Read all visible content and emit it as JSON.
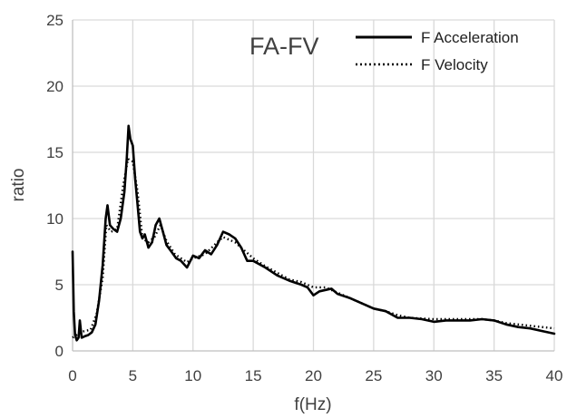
{
  "chart_data": {
    "type": "line",
    "title": "",
    "annotation": "FA-FV",
    "xlabel": "f(Hz)",
    "ylabel": "ratio",
    "xlim": [
      0,
      40
    ],
    "ylim": [
      0,
      25
    ],
    "xticks": [
      0,
      5,
      10,
      15,
      20,
      25,
      30,
      35,
      40
    ],
    "yticks": [
      0,
      5,
      10,
      15,
      20,
      25
    ],
    "grid": true,
    "legend_position": "top-right",
    "series": [
      {
        "name": "F Acceleration",
        "style": "solid",
        "color": "#000000",
        "x": [
          0,
          0.1,
          0.2,
          0.35,
          0.5,
          0.6,
          0.75,
          1.0,
          1.3,
          1.6,
          1.9,
          2.2,
          2.5,
          2.75,
          2.9,
          3.1,
          3.4,
          3.7,
          4.0,
          4.3,
          4.5,
          4.65,
          4.8,
          5.0,
          5.2,
          5.4,
          5.6,
          5.8,
          6.0,
          6.3,
          6.6,
          6.9,
          7.2,
          7.5,
          7.8,
          8.2,
          8.6,
          9.0,
          9.5,
          10.0,
          10.5,
          11.0,
          11.5,
          12.0,
          12.5,
          13.0,
          13.5,
          14.0,
          14.5,
          15.0,
          16.0,
          17.0,
          18.0,
          19.0,
          19.5,
          20.0,
          20.5,
          21.0,
          21.5,
          22.0,
          23.0,
          24.0,
          25.0,
          26.0,
          27.0,
          28.0,
          29.0,
          30.0,
          31.0,
          32.0,
          33.0,
          34.0,
          35.0,
          36.0,
          37.0,
          38.0,
          39.0,
          40.0
        ],
        "y": [
          7.5,
          3.0,
          1.2,
          0.8,
          1.0,
          2.3,
          1.0,
          1.1,
          1.2,
          1.4,
          2.0,
          3.8,
          6.5,
          10.0,
          11.0,
          9.5,
          9.2,
          9.0,
          10.0,
          12.0,
          14.5,
          17.0,
          16.0,
          15.5,
          13.0,
          11.0,
          9.0,
          8.5,
          8.8,
          7.8,
          8.2,
          9.5,
          10.0,
          9.0,
          8.0,
          7.5,
          7.0,
          6.8,
          6.3,
          7.2,
          7.0,
          7.6,
          7.3,
          8.0,
          9.0,
          8.8,
          8.5,
          7.8,
          6.8,
          6.8,
          6.3,
          5.7,
          5.3,
          5.0,
          4.8,
          4.2,
          4.5,
          4.6,
          4.7,
          4.3,
          4.0,
          3.6,
          3.2,
          3.0,
          2.5,
          2.5,
          2.4,
          2.2,
          2.3,
          2.3,
          2.3,
          2.4,
          2.3,
          2.0,
          1.8,
          1.7,
          1.5,
          1.3
        ]
      },
      {
        "name": "F Velocity",
        "style": "dotted",
        "color": "#000000",
        "x": [
          0,
          0.3,
          0.6,
          1.0,
          1.5,
          2.0,
          2.5,
          2.8,
          3.2,
          3.7,
          4.2,
          4.6,
          5.0,
          5.4,
          5.8,
          6.3,
          6.8,
          7.3,
          7.8,
          8.5,
          9.5,
          10.0,
          11.0,
          12.0,
          12.5,
          13.5,
          14.5,
          15.0,
          16.0,
          17.0,
          18.0,
          19.0,
          20.0,
          21.0,
          22.0,
          23.0,
          24.0,
          25.0,
          26.0,
          27.0,
          28.0,
          30.0,
          32.0,
          34.0,
          35.0,
          36.0,
          38.0,
          40.0
        ],
        "y": [
          1.0,
          1.2,
          1.4,
          1.5,
          1.6,
          2.8,
          5.5,
          9.5,
          9.0,
          9.2,
          12.5,
          14.5,
          14.3,
          12.0,
          8.5,
          8.2,
          8.6,
          9.5,
          8.3,
          7.3,
          6.7,
          7.0,
          7.3,
          8.2,
          8.6,
          8.2,
          7.4,
          7.0,
          6.4,
          5.9,
          5.4,
          5.2,
          4.8,
          4.8,
          4.4,
          4.0,
          3.6,
          3.2,
          3.0,
          2.7,
          2.5,
          2.4,
          2.4,
          2.4,
          2.3,
          2.1,
          1.9,
          1.7
        ]
      }
    ]
  }
}
